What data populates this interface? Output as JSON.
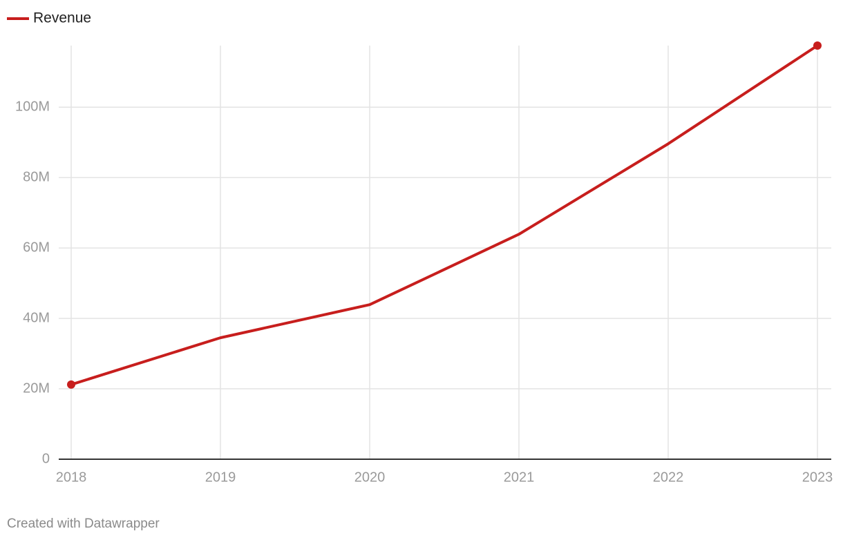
{
  "chart_data": {
    "type": "line",
    "categories": [
      "2018",
      "2019",
      "2020",
      "2021",
      "2022",
      "2023"
    ],
    "series": [
      {
        "name": "Revenue",
        "color": "#c71e1d",
        "values": [
          21200000,
          34500000,
          43900000,
          63900000,
          89600000,
          117500000
        ]
      }
    ],
    "ylim": [
      0,
      117500000
    ],
    "yticks": [
      0,
      {
        "value": 20000000,
        "label": "20M"
      },
      {
        "value": 40000000,
        "label": "40M"
      },
      {
        "value": 60000000,
        "label": "60M"
      },
      {
        "value": 80000000,
        "label": "80M"
      },
      {
        "value": 100000000,
        "label": "100M"
      }
    ],
    "grid": true,
    "markers": "ends",
    "legend": "top-left",
    "footer": "Created with Datawrapper"
  }
}
